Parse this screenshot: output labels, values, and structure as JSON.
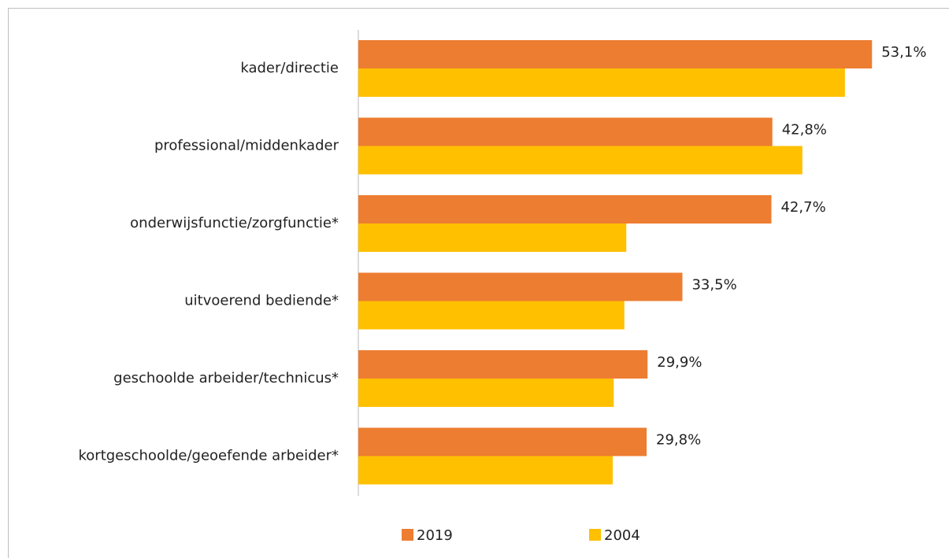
{
  "chart_data": {
    "type": "hbar",
    "categories": [
      "kader/directie",
      "professional/middenkader",
      "onderwijsfunctie/zorgfunctie*",
      "uitvoerend bediende*",
      "geschoolde arbeider/technicus*",
      "kortgeschoolde/geoefende arbeider*"
    ],
    "series": [
      {
        "name": "2019",
        "color": "#ED7D31",
        "values": [
          53.1,
          42.8,
          42.7,
          33.5,
          29.9,
          29.8
        ],
        "value_labels": [
          "53,1%",
          "42,8%",
          "42,7%",
          "33,5%",
          "29,9%",
          "29,8%"
        ]
      },
      {
        "name": "2004",
        "color": "#FFC000",
        "values": [
          50.3,
          45.9,
          27.7,
          27.5,
          26.4,
          26.3
        ]
      }
    ],
    "xlim": [
      0,
      60
    ],
    "legend": "bottom"
  }
}
